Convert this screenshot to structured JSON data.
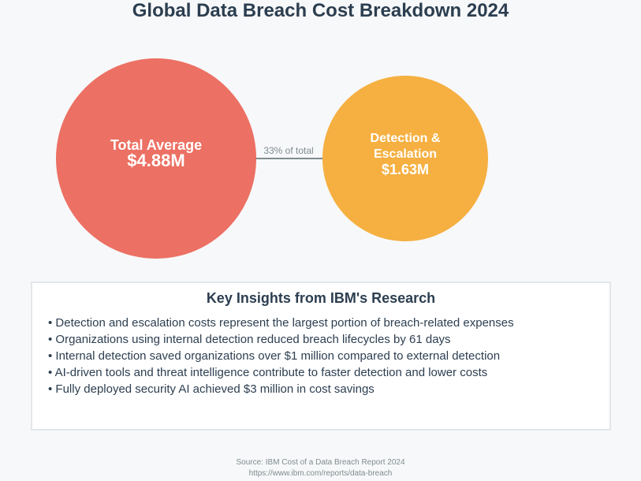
{
  "title": "Global Data Breach Cost Breakdown 2024",
  "diagram": {
    "total": {
      "label": "Total Average",
      "value": "$4.88M",
      "color": "#ec7063"
    },
    "connector_label": "33% of total",
    "detection": {
      "label_line1": "Detection &",
      "label_line2": "Escalation",
      "value": "$1.63M",
      "color": "#f5b041"
    }
  },
  "insights": {
    "title": "Key Insights from IBM's Research",
    "items": [
      "• Detection and escalation costs represent the largest portion of breach-related expenses",
      "• Organizations using internal detection reduced breach lifecycles by 61 days",
      "• Internal detection saved organizations over $1 million compared to external detection",
      "• AI-driven tools and threat intelligence contribute to faster detection and lower costs",
      "• Fully deployed security AI achieved $3 million in cost savings"
    ]
  },
  "source": {
    "line1": "Source: IBM Cost of a Data Breach Report 2024",
    "line2": "https://www.ibm.com/reports/data-breach"
  }
}
